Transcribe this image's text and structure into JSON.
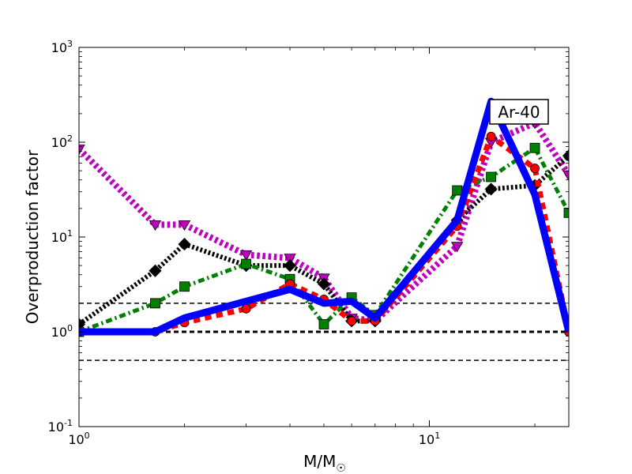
{
  "chart_data": {
    "type": "line",
    "xlabel_main": "M/M",
    "xlabel_sub": "☉",
    "ylabel": "Overproduction factor",
    "annotation": "Ar-40",
    "xscale": "log",
    "yscale": "log",
    "xlim": [
      1,
      25
    ],
    "ylim": [
      0.1,
      1000
    ],
    "x_ticks": [
      {
        "base": "10",
        "exp": "0",
        "value": 1
      },
      {
        "base": "10",
        "exp": "1",
        "value": 10
      }
    ],
    "y_ticks": [
      {
        "base": "10",
        "exp": "-1",
        "value": 0.1
      },
      {
        "base": "10",
        "exp": "0",
        "value": 1
      },
      {
        "base": "10",
        "exp": "1",
        "value": 10
      },
      {
        "base": "10",
        "exp": "2",
        "value": 100
      },
      {
        "base": "10",
        "exp": "3",
        "value": 1000
      }
    ],
    "reference_lines": [
      {
        "y": 2,
        "style": "dashed",
        "width": 1.5
      },
      {
        "y": 1,
        "style": "dashed",
        "width": 3
      },
      {
        "y": 0.5,
        "style": "dashed",
        "width": 1.5
      }
    ],
    "series": [
      {
        "color": "#bf00bf",
        "dash": "dotted",
        "width": 8,
        "marker": "triangle-down",
        "x": [
          1,
          1.65,
          2,
          3,
          4,
          5,
          6,
          7,
          12,
          15,
          20,
          25
        ],
        "y": [
          85,
          13.5,
          13.5,
          6.5,
          6,
          3.7,
          1.4,
          1.3,
          8,
          100,
          160,
          45
        ]
      },
      {
        "color": "#000000",
        "dash": "dotted",
        "width": 6,
        "marker": "diamond",
        "x": [
          1,
          1.65,
          2,
          3,
          4,
          5,
          6,
          7,
          12,
          15,
          20,
          25
        ],
        "y": [
          1.2,
          4.4,
          8.4,
          5,
          5,
          3.2,
          1.3,
          1.3,
          15,
          32,
          35,
          72
        ]
      },
      {
        "color": "#007f00",
        "dash": "dashdot",
        "width": 5,
        "marker": "square",
        "x": [
          1,
          1.65,
          2,
          3,
          4,
          5,
          6,
          7,
          12,
          15,
          20,
          25
        ],
        "y": [
          1.0,
          2.0,
          3.0,
          5.2,
          3.6,
          1.2,
          2.3,
          1.5,
          31,
          43,
          87,
          18
        ]
      },
      {
        "color": "#ff0000",
        "dash": "dashed",
        "width": 7,
        "marker": "circle",
        "x": [
          1,
          1.65,
          2,
          3,
          4,
          5,
          6,
          7,
          12,
          15,
          20,
          25
        ],
        "y": [
          1.0,
          1.0,
          1.25,
          1.75,
          3.2,
          2.2,
          1.3,
          1.3,
          13,
          115,
          53,
          1.0
        ]
      },
      {
        "color": "#0000ff",
        "dash": "solid",
        "width": 9,
        "marker": "none",
        "x": [
          1,
          1.65,
          2,
          3,
          4,
          5,
          6,
          7,
          12,
          15,
          20,
          25
        ],
        "y": [
          1.0,
          1.0,
          1.4,
          2.1,
          2.8,
          2.0,
          2.1,
          1.4,
          15,
          270,
          28,
          1.0
        ]
      }
    ]
  }
}
